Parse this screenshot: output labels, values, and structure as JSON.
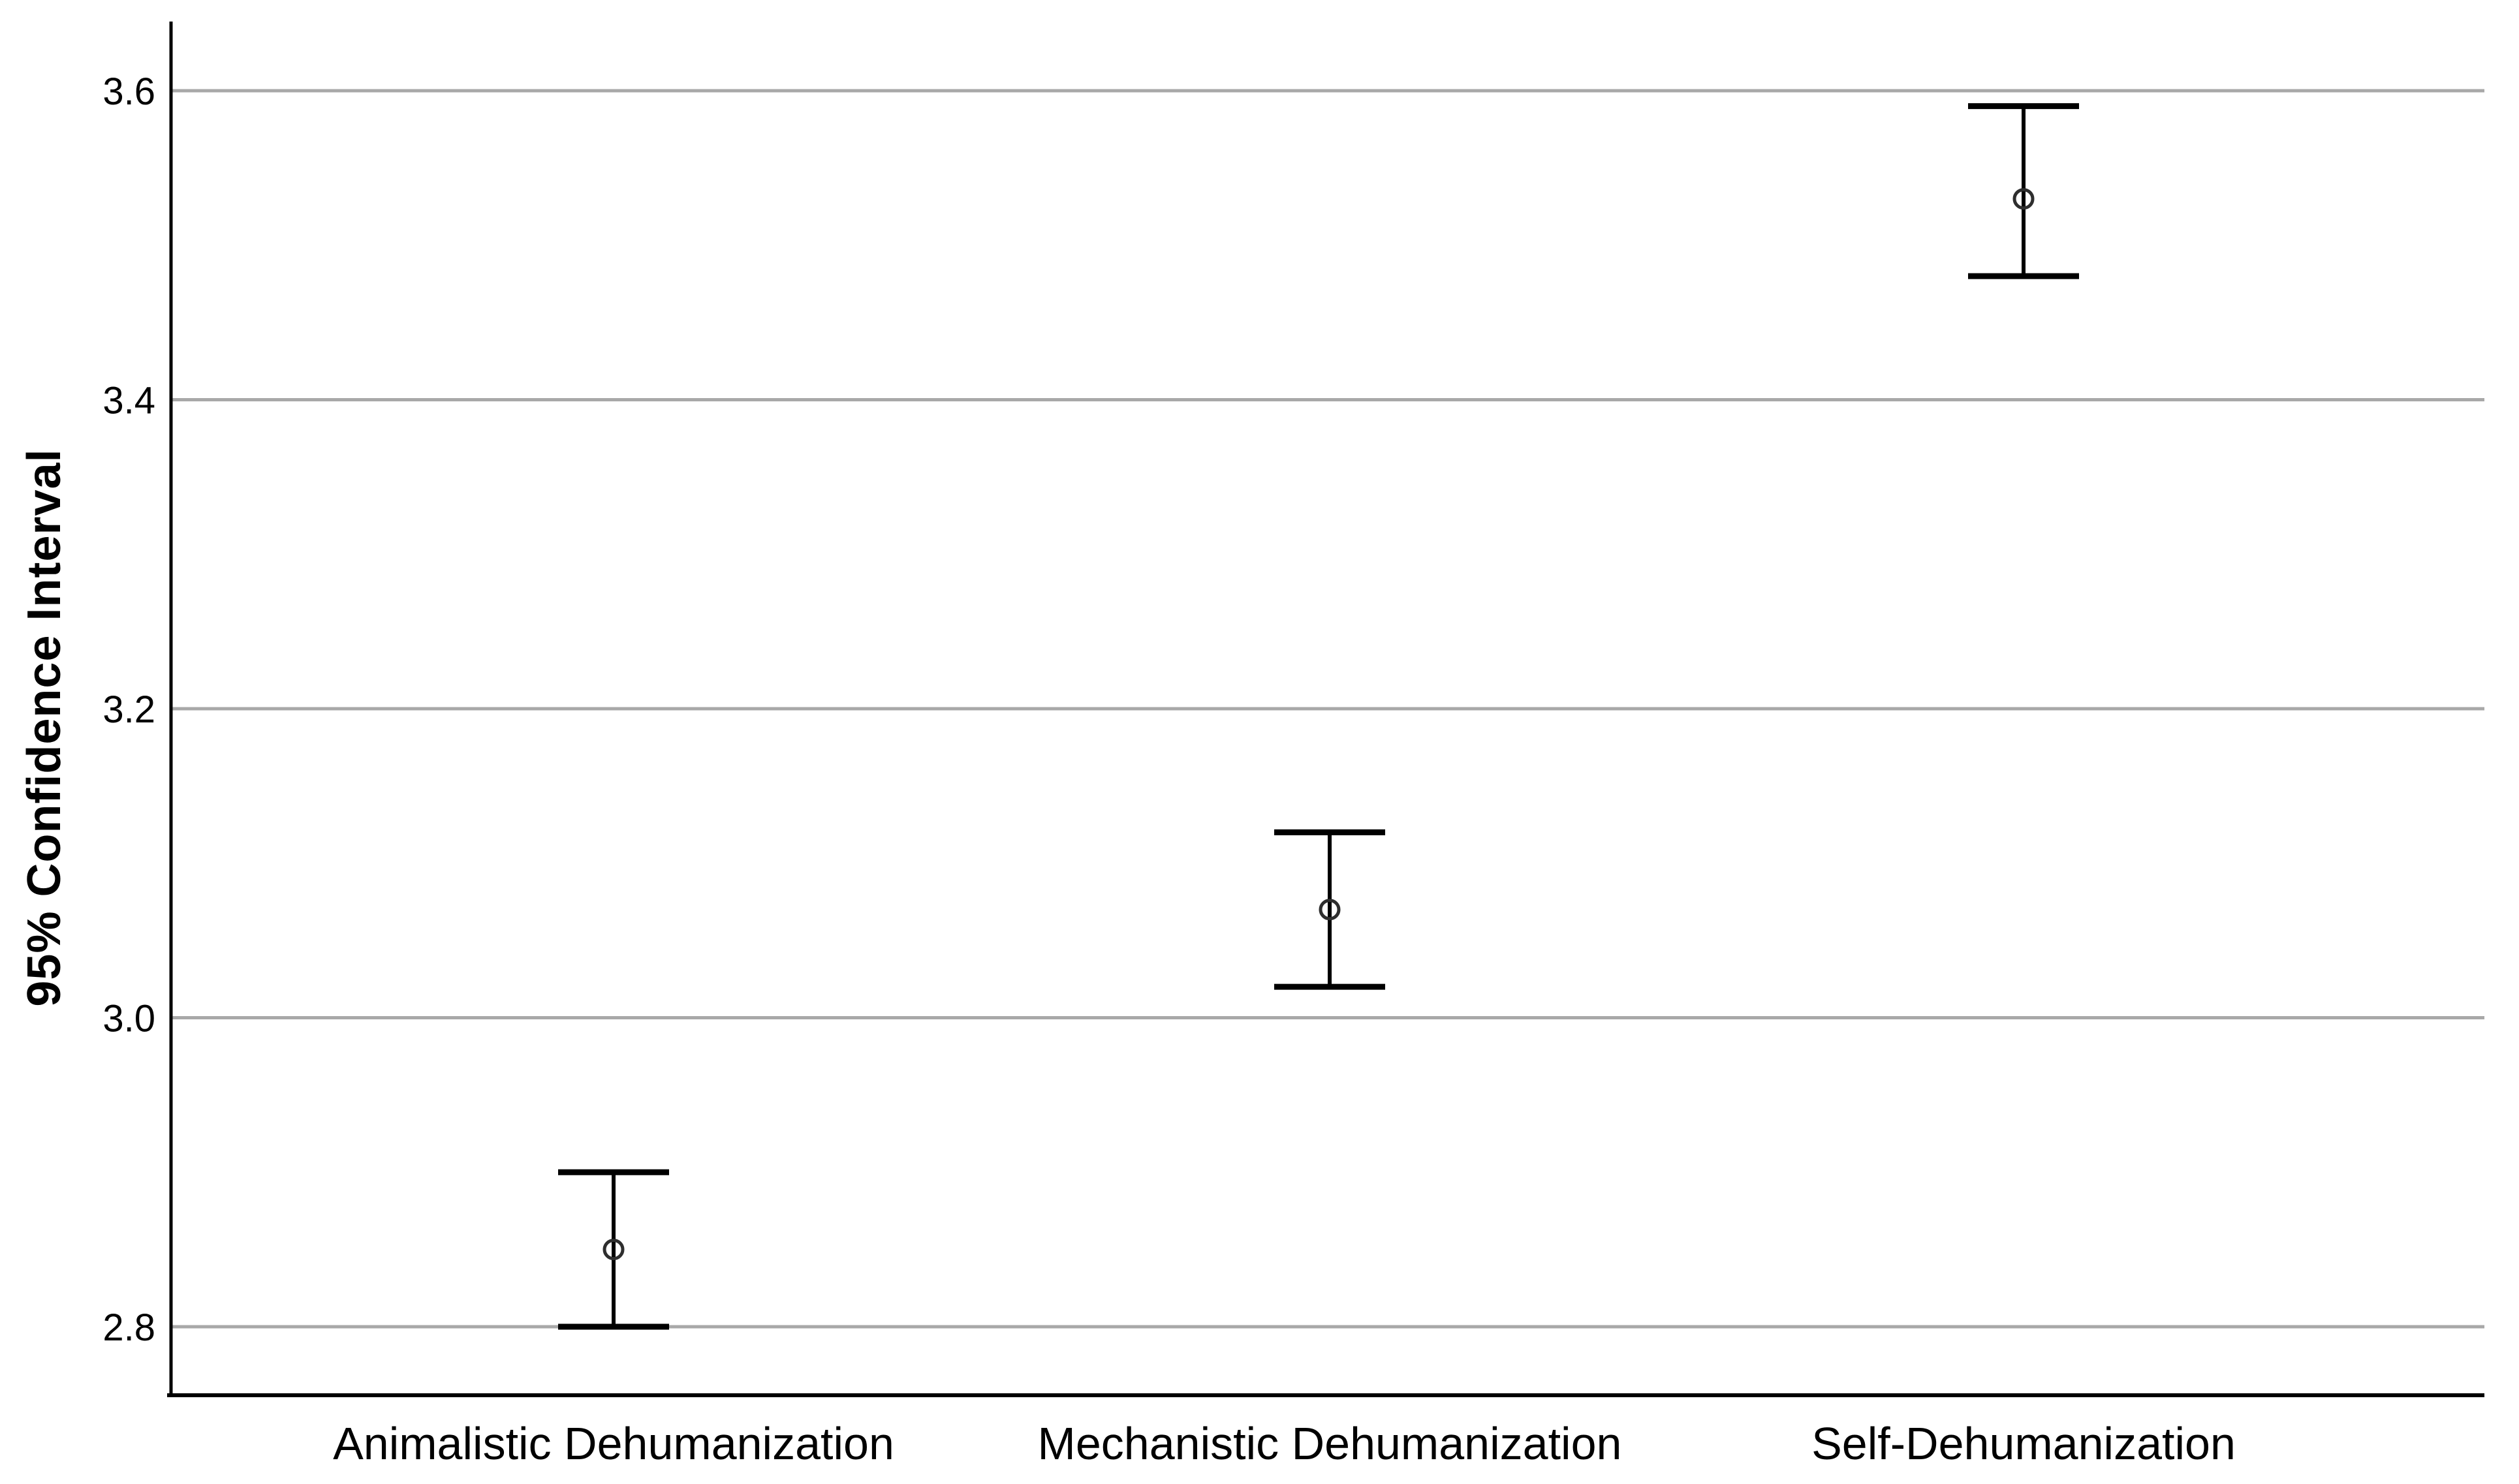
{
  "chart_data": {
    "type": "errorbar",
    "title": "",
    "xlabel": "",
    "ylabel": "95% Confidence Interval",
    "categories": [
      "Animalistic Dehumanization",
      "Mechanistic Dehumanization",
      "Self-Dehumanization"
    ],
    "series": [
      {
        "name": "95% Confidence Interval",
        "points": [
          {
            "category": "Animalistic Dehumanization",
            "mean": 2.85,
            "ci_low": 2.8,
            "ci_high": 2.9
          },
          {
            "category": "Mechanistic Dehumanization",
            "mean": 3.07,
            "ci_low": 3.02,
            "ci_high": 3.12
          },
          {
            "category": "Self-Dehumanization",
            "mean": 3.53,
            "ci_low": 3.48,
            "ci_high": 3.59
          }
        ]
      }
    ],
    "yticks": [
      2.8,
      3.0,
      3.2,
      3.4,
      3.6
    ],
    "ytick_labels": [
      "2.8",
      "3.0",
      "3.2",
      "3.4",
      "3.6"
    ],
    "ylim": [
      2.76,
      3.65
    ],
    "grid": true,
    "legend_position": "none",
    "marker": "open-circle",
    "colors": {
      "background": "#ffffff",
      "axis": "#000000",
      "grid": "#a8a8a8",
      "error_bar": "#000000",
      "marker_stroke": "#2e2e2e",
      "text": "#000000"
    }
  }
}
